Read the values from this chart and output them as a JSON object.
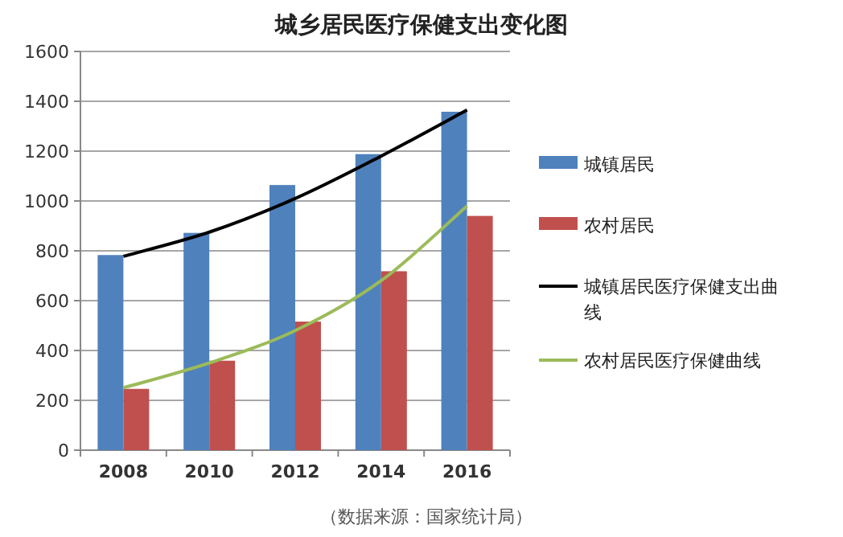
{
  "chart_data": {
    "type": "bar",
    "title": "城乡居民医疗保健支出变化图",
    "categories": [
      "2008",
      "2010",
      "2012",
      "2014",
      "2016"
    ],
    "series": [
      {
        "name": "城镇居民",
        "color": "#4f81bd",
        "values": [
          783,
          872,
          1064,
          1188,
          1358
        ]
      },
      {
        "name": "农村居民",
        "color": "#c0504d",
        "values": [
          246,
          359,
          516,
          718,
          940
        ]
      },
      {
        "name": "城镇居民医疗保健支出曲线",
        "type": "line",
        "color": "#000000",
        "values": [
          778,
          875,
          1010,
          1180,
          1365
        ]
      },
      {
        "name": "农村居民医疗保健曲线",
        "type": "line",
        "color": "#9bbb59",
        "values": [
          250,
          350,
          480,
          680,
          980
        ]
      }
    ],
    "ylim": [
      0,
      1600
    ],
    "yticks": [
      0,
      200,
      400,
      600,
      800,
      1000,
      1200,
      1400,
      1600
    ],
    "grid": "y",
    "legend": "right",
    "marker": "none",
    "line_style": "solid",
    "annotations": [
      "（数据来源：国家统计局）"
    ]
  }
}
